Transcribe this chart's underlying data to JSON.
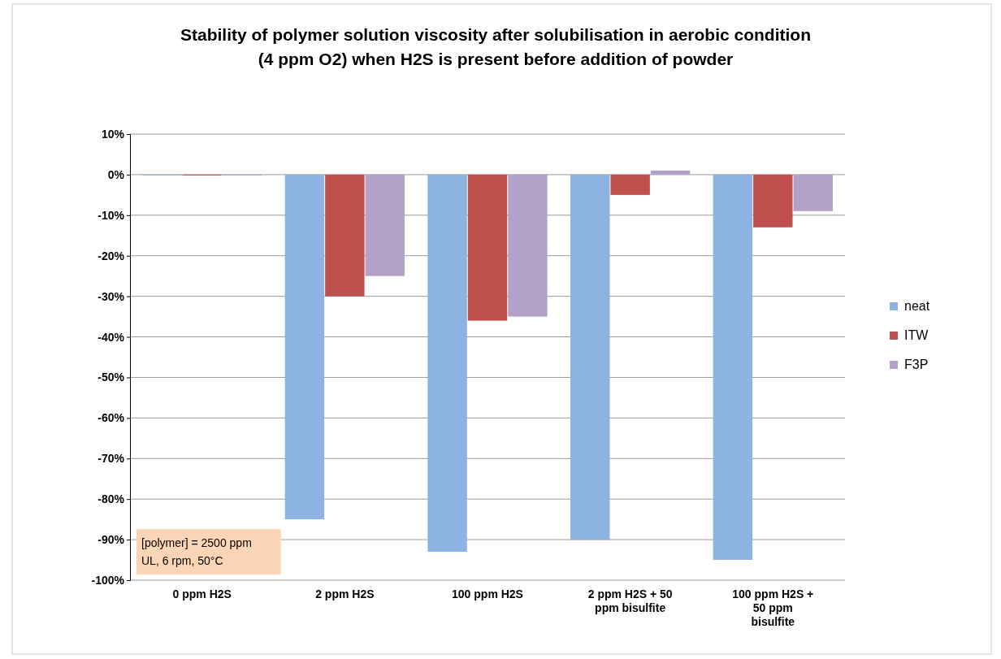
{
  "chart_data": {
    "type": "bar",
    "title": "Stability of polymer solution viscosity after solubilisation in aerobic condition (4 ppm O2) when H2S is present before addition of powder",
    "categories": [
      "0 ppm H2S",
      "2 ppm H2S",
      "100 ppm H2S",
      "2 ppm H2S + 50 ppm  bisulfite",
      "100 ppm H2S + 50 ppm bisulfite"
    ],
    "series": [
      {
        "name": "neat",
        "color": "#8db3e2",
        "values": [
          0,
          -85,
          -93,
          -90,
          -95
        ]
      },
      {
        "name": "ITW",
        "color": "#c0504d",
        "values": [
          0,
          -30,
          -36,
          -5,
          -13
        ]
      },
      {
        "name": "F3P",
        "color": "#b3a2c7",
        "values": [
          0,
          -25,
          -35,
          1,
          -9
        ]
      }
    ],
    "ylim": [
      -100,
      10
    ],
    "yticks": [
      {
        "value": -100,
        "label": "-100%"
      },
      {
        "value": -90,
        "label": "-90%"
      },
      {
        "value": -80,
        "label": "-80%"
      },
      {
        "value": -70,
        "label": "-70%"
      },
      {
        "value": -60,
        "label": "-60%"
      },
      {
        "value": -50,
        "label": "-50%"
      },
      {
        "value": -40,
        "label": "-40%"
      },
      {
        "value": -30,
        "label": "-30%"
      },
      {
        "value": -20,
        "label": "-20%"
      },
      {
        "value": -10,
        "label": "-10%"
      },
      {
        "value": 0,
        "label": "0%"
      },
      {
        "value": 10,
        "label": "10%"
      }
    ],
    "grid": true,
    "legend": "right",
    "annotations": [
      "[polymer] = 2500 ppm UL, 6 rpm, 50°C"
    ]
  }
}
